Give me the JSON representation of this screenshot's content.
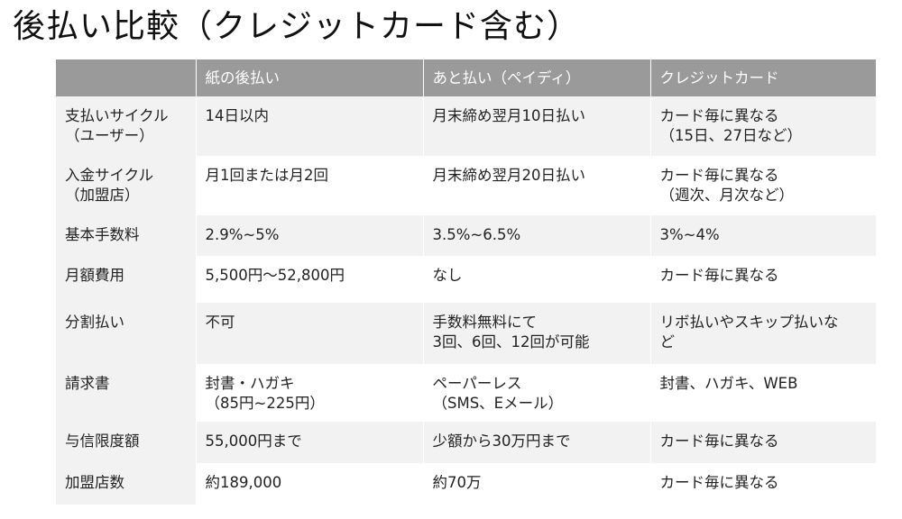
{
  "title": "後払い比較（クレジットカード含む）",
  "columns": [
    "",
    "紙の後払い",
    "あと払い（ペイディ）",
    "クレジットカード"
  ],
  "rows": [
    {
      "label": "支払いサイクル\n（ユーザー）",
      "values": [
        "14日以内",
        "月末締め翌月10日払い",
        "カード毎に異なる\n（15日、27日など）"
      ]
    },
    {
      "label": "入金サイクル\n（加盟店）",
      "values": [
        "月1回または月2回",
        "月末締め翌月20日払い",
        "カード毎に異なる\n（週次、月次など）"
      ]
    },
    {
      "label": "基本手数料",
      "values": [
        "2.9%~5%",
        "3.5%~6.5%",
        "3%~4%"
      ]
    },
    {
      "label": "月額費用",
      "values": [
        "5,500円〜52,800円",
        "なし",
        "カード毎に異なる"
      ]
    },
    {
      "label": "分割払い",
      "values": [
        "不可",
        "手数料無料にて\n3回、6回、12回が可能",
        "リボ払いやスキップ払いな\nど"
      ]
    },
    {
      "label": "請求書",
      "values": [
        "封書・ハガキ\n（85円~225円）",
        "ペーパーレス\n（SMS、Eメール）",
        "封書、ハガキ、WEB"
      ]
    },
    {
      "label": "与信限度額",
      "values": [
        "55,000円まで",
        "少額から30万円まで",
        "カード毎に異なる"
      ]
    },
    {
      "label": "加盟店数",
      "values": [
        "約189,000",
        "約70万",
        "カード毎に異なる"
      ]
    }
  ]
}
